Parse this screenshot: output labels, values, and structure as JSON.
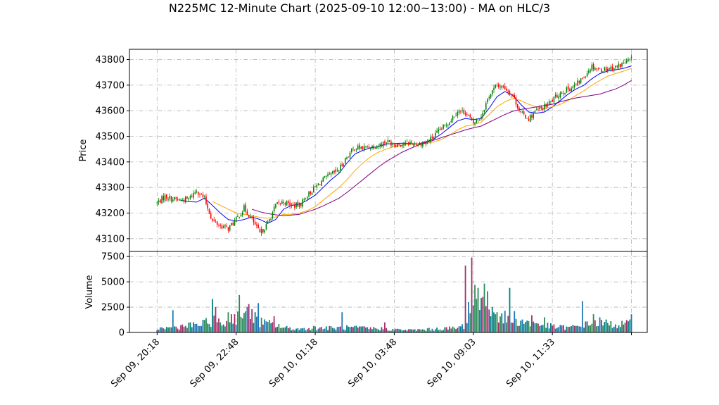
{
  "chart_data": {
    "type": "candlestick",
    "title": "N225MC 12-Minute Chart (2025-09-10 12:00~13:00) - MA on HLC/3",
    "price_panel": {
      "ylabel": "Price",
      "ylim": [
        43050,
        43840
      ],
      "yticks": [
        43100,
        43200,
        43300,
        43400,
        43500,
        43600,
        43700,
        43800
      ],
      "grid": true
    },
    "volume_panel": {
      "ylabel": "Volume",
      "ylim": [
        0,
        8000
      ],
      "yticks": [
        0,
        2500,
        5000,
        7500
      ],
      "grid": true
    },
    "xlim": [
      -3.5,
      62
    ],
    "x_ticks": [
      {
        "index": 0,
        "label": "Sep 09, 20:18"
      },
      {
        "index": 10,
        "label": "Sep 09, 22:48"
      },
      {
        "index": 20,
        "label": "Sep 10, 01:18"
      },
      {
        "index": 30,
        "label": "Sep 10, 03:48"
      },
      {
        "index": 40,
        "label": "Sep 10, 09:03"
      },
      {
        "index": 50,
        "label": "Sep 10, 11:33"
      },
      {
        "index": 60,
        "label": ""
      }
    ],
    "close_path": [
      [
        0,
        43240
      ],
      [
        1,
        43265
      ],
      [
        2,
        43255
      ],
      [
        3,
        43250
      ],
      [
        4,
        43255
      ],
      [
        5,
        43290
      ],
      [
        6,
        43255
      ],
      [
        7,
        43170
      ],
      [
        8,
        43150
      ],
      [
        9,
        43140
      ],
      [
        10,
        43175
      ],
      [
        11,
        43220
      ],
      [
        12,
        43175
      ],
      [
        13,
        43120
      ],
      [
        14,
        43160
      ],
      [
        15,
        43230
      ],
      [
        16,
        43245
      ],
      [
        17,
        43230
      ],
      [
        18,
        43230
      ],
      [
        19,
        43270
      ],
      [
        20,
        43300
      ],
      [
        21,
        43330
      ],
      [
        22,
        43350
      ],
      [
        23,
        43370
      ],
      [
        24,
        43420
      ],
      [
        25,
        43455
      ],
      [
        26,
        43455
      ],
      [
        27,
        43460
      ],
      [
        28,
        43465
      ],
      [
        29,
        43480
      ],
      [
        30,
        43470
      ],
      [
        31,
        43470
      ],
      [
        32,
        43475
      ],
      [
        33,
        43470
      ],
      [
        34,
        43475
      ],
      [
        35,
        43500
      ],
      [
        36,
        43530
      ],
      [
        37,
        43560
      ],
      [
        38,
        43600
      ],
      [
        39,
        43595
      ],
      [
        40,
        43550
      ],
      [
        41,
        43580
      ],
      [
        42,
        43660
      ],
      [
        43,
        43700
      ],
      [
        44,
        43690
      ],
      [
        45,
        43660
      ],
      [
        46,
        43590
      ],
      [
        47,
        43570
      ],
      [
        48,
        43600
      ],
      [
        49,
        43615
      ],
      [
        50,
        43640
      ],
      [
        51,
        43670
      ],
      [
        52,
        43685
      ],
      [
        53,
        43700
      ],
      [
        54,
        43735
      ],
      [
        55,
        43775
      ],
      [
        56,
        43760
      ],
      [
        57,
        43765
      ],
      [
        58,
        43770
      ],
      [
        59,
        43785
      ],
      [
        60,
        43800
      ]
    ],
    "ma_series": [
      {
        "color": "#0000ff",
        "values": [
          [
            3,
            43250
          ],
          [
            4,
            43245
          ],
          [
            5,
            43243
          ],
          [
            6,
            43258
          ],
          [
            7,
            43230
          ],
          [
            8,
            43200
          ],
          [
            9,
            43175
          ],
          [
            10,
            43168
          ],
          [
            11,
            43175
          ],
          [
            12,
            43185
          ],
          [
            13,
            43175
          ],
          [
            14,
            43160
          ],
          [
            15,
            43175
          ],
          [
            16,
            43215
          ],
          [
            17,
            43230
          ],
          [
            18,
            43235
          ],
          [
            19,
            43250
          ],
          [
            20,
            43270
          ],
          [
            21,
            43300
          ],
          [
            22,
            43330
          ],
          [
            23,
            43355
          ],
          [
            24,
            43395
          ],
          [
            25,
            43430
          ],
          [
            26,
            43445
          ],
          [
            27,
            43455
          ],
          [
            28,
            43460
          ],
          [
            29,
            43470
          ],
          [
            30,
            43472
          ],
          [
            31,
            43473
          ],
          [
            32,
            43472
          ],
          [
            33,
            43470
          ],
          [
            34,
            43478
          ],
          [
            35,
            43490
          ],
          [
            36,
            43510
          ],
          [
            37,
            43535
          ],
          [
            38,
            43560
          ],
          [
            39,
            43570
          ],
          [
            40,
            43565
          ],
          [
            41,
            43570
          ],
          [
            42,
            43610
          ],
          [
            43,
            43655
          ],
          [
            44,
            43675
          ],
          [
            45,
            43660
          ],
          [
            46,
            43625
          ],
          [
            47,
            43595
          ],
          [
            48,
            43590
          ],
          [
            49,
            43595
          ],
          [
            50,
            43615
          ],
          [
            51,
            43640
          ],
          [
            52,
            43665
          ],
          [
            53,
            43685
          ],
          [
            54,
            43700
          ],
          [
            55,
            43725
          ],
          [
            56,
            43745
          ],
          [
            57,
            43755
          ],
          [
            58,
            43760
          ],
          [
            59,
            43765
          ],
          [
            60,
            43775
          ]
        ]
      },
      {
        "color": "#ffa500",
        "values": [
          [
            7,
            43245
          ],
          [
            8,
            43230
          ],
          [
            9,
            43215
          ],
          [
            10,
            43200
          ],
          [
            11,
            43195
          ],
          [
            12,
            43190
          ],
          [
            13,
            43183
          ],
          [
            14,
            43180
          ],
          [
            15,
            43185
          ],
          [
            16,
            43195
          ],
          [
            17,
            43195
          ],
          [
            18,
            43200
          ],
          [
            19,
            43210
          ],
          [
            20,
            43225
          ],
          [
            21,
            43250
          ],
          [
            22,
            43275
          ],
          [
            23,
            43300
          ],
          [
            24,
            43330
          ],
          [
            25,
            43365
          ],
          [
            26,
            43395
          ],
          [
            27,
            43420
          ],
          [
            28,
            43438
          ],
          [
            29,
            43450
          ],
          [
            30,
            43460
          ],
          [
            31,
            43465
          ],
          [
            32,
            43468
          ],
          [
            33,
            43470
          ],
          [
            34,
            43472
          ],
          [
            35,
            43478
          ],
          [
            36,
            43488
          ],
          [
            37,
            43505
          ],
          [
            38,
            43525
          ],
          [
            39,
            43540
          ],
          [
            40,
            43545
          ],
          [
            41,
            43555
          ],
          [
            42,
            43585
          ],
          [
            43,
            43615
          ],
          [
            44,
            43635
          ],
          [
            45,
            43648
          ],
          [
            46,
            43640
          ],
          [
            47,
            43625
          ],
          [
            48,
            43615
          ],
          [
            49,
            43610
          ],
          [
            50,
            43615
          ],
          [
            51,
            43625
          ],
          [
            52,
            43640
          ],
          [
            53,
            43660
          ],
          [
            54,
            43678
          ],
          [
            55,
            43700
          ],
          [
            56,
            43718
          ],
          [
            57,
            43735
          ],
          [
            58,
            43745
          ],
          [
            59,
            43755
          ],
          [
            60,
            43765
          ]
        ]
      },
      {
        "color": "#800080",
        "values": [
          [
            12,
            43215
          ],
          [
            13,
            43205
          ],
          [
            14,
            43198
          ],
          [
            15,
            43193
          ],
          [
            16,
            43190
          ],
          [
            17,
            43192
          ],
          [
            18,
            43195
          ],
          [
            19,
            43205
          ],
          [
            20,
            43215
          ],
          [
            21,
            43228
          ],
          [
            22,
            43243
          ],
          [
            23,
            43258
          ],
          [
            24,
            43280
          ],
          [
            25,
            43305
          ],
          [
            26,
            43330
          ],
          [
            27,
            43355
          ],
          [
            28,
            43380
          ],
          [
            29,
            43402
          ],
          [
            30,
            43420
          ],
          [
            31,
            43438
          ],
          [
            32,
            43452
          ],
          [
            33,
            43465
          ],
          [
            34,
            43475
          ],
          [
            35,
            43485
          ],
          [
            36,
            43495
          ],
          [
            37,
            43505
          ],
          [
            38,
            43515
          ],
          [
            39,
            43525
          ],
          [
            40,
            43533
          ],
          [
            41,
            43540
          ],
          [
            42,
            43555
          ],
          [
            43,
            43570
          ],
          [
            44,
            43585
          ],
          [
            45,
            43598
          ],
          [
            46,
            43605
          ],
          [
            47,
            43610
          ],
          [
            48,
            43615
          ],
          [
            49,
            43620
          ],
          [
            50,
            43625
          ],
          [
            51,
            43635
          ],
          [
            52,
            43643
          ],
          [
            53,
            43650
          ],
          [
            54,
            43655
          ],
          [
            55,
            43660
          ],
          [
            56,
            43665
          ],
          [
            57,
            43675
          ],
          [
            58,
            43685
          ],
          [
            59,
            43700
          ],
          [
            60,
            43718
          ]
        ]
      }
    ],
    "volume_profile": [
      [
        0,
        400
      ],
      [
        2,
        500
      ],
      [
        4,
        700
      ],
      [
        6,
        900
      ],
      [
        7,
        1300
      ],
      [
        8,
        900
      ],
      [
        9,
        1000
      ],
      [
        10,
        1600
      ],
      [
        11,
        2000
      ],
      [
        12,
        1500
      ],
      [
        13,
        1100
      ],
      [
        14,
        900
      ],
      [
        15,
        800
      ],
      [
        16,
        500
      ],
      [
        17,
        400
      ],
      [
        18,
        350
      ],
      [
        20,
        500
      ],
      [
        22,
        450
      ],
      [
        24,
        500
      ],
      [
        26,
        450
      ],
      [
        28,
        400
      ],
      [
        30,
        300
      ],
      [
        32,
        250
      ],
      [
        34,
        300
      ],
      [
        36,
        400
      ],
      [
        38,
        450
      ],
      [
        39,
        800
      ],
      [
        40,
        3200
      ],
      [
        41,
        3900
      ],
      [
        42,
        2600
      ],
      [
        43,
        1800
      ],
      [
        44,
        1500
      ],
      [
        45,
        1300
      ],
      [
        46,
        1200
      ],
      [
        47,
        1000
      ],
      [
        48,
        900
      ],
      [
        49,
        750
      ],
      [
        50,
        600
      ],
      [
        52,
        500
      ],
      [
        54,
        700
      ],
      [
        55,
        1100
      ],
      [
        56,
        1000
      ],
      [
        58,
        800
      ],
      [
        60,
        900
      ]
    ],
    "volume_spikes": [
      [
        1.9,
        2200
      ],
      [
        7.0,
        3300
      ],
      [
        7.4,
        2500
      ],
      [
        9.0,
        2000
      ],
      [
        9.3,
        1800
      ],
      [
        10.4,
        3700
      ],
      [
        11.5,
        2800
      ],
      [
        11.9,
        2300
      ],
      [
        12.3,
        2000
      ],
      [
        12.8,
        2900
      ],
      [
        14.8,
        1600
      ],
      [
        23.4,
        2000
      ],
      [
        28.7,
        1000
      ],
      [
        38.9,
        6600
      ],
      [
        39.4,
        3000
      ],
      [
        39.8,
        7400
      ],
      [
        40.2,
        4700
      ],
      [
        40.5,
        4400
      ],
      [
        41.0,
        3400
      ],
      [
        41.5,
        2600
      ],
      [
        42.3,
        2500
      ],
      [
        43.0,
        2000
      ],
      [
        44.5,
        4400
      ],
      [
        45.2,
        2100
      ],
      [
        47.3,
        1700
      ],
      [
        49.0,
        1500
      ],
      [
        53.8,
        3100
      ],
      [
        55.2,
        1800
      ],
      [
        56.0,
        1500
      ],
      [
        60.0,
        1800
      ]
    ],
    "candle_colors": {
      "up": "#008000",
      "down": "#ff0000"
    },
    "volume_colors": [
      "#1f77b4",
      "#008080",
      "#a0306a",
      "#2e8b57"
    ],
    "candles_per_label": 5,
    "seed": 7
  }
}
